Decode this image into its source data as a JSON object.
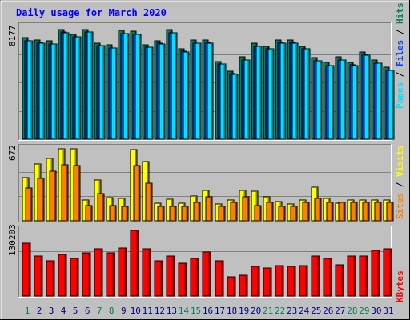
{
  "title": "Daily usage for March 2020",
  "colors": {
    "background": "#c0c0c0",
    "title": "#0000ff",
    "hits": "#00805c",
    "files": "#0040ff",
    "pages": "#00e0ff",
    "visits": "#ffff00",
    "sites": "#ff8000",
    "kbytes": "#ff0000",
    "weekend_day_label": "#00805c",
    "weekday_day_label": "#000080"
  },
  "chart_data": [
    {
      "type": "bar",
      "panel": "hits-files-pages",
      "ymax_label": "8177",
      "ylim": [
        0,
        8177
      ],
      "legend": [
        "Hits",
        "Files",
        "Pages"
      ],
      "categories": [
        "1",
        "2",
        "3",
        "4",
        "5",
        "6",
        "7",
        "8",
        "9",
        "10",
        "11",
        "12",
        "13",
        "14",
        "15",
        "16",
        "17",
        "18",
        "19",
        "20",
        "21",
        "22",
        "23",
        "24",
        "25",
        "26",
        "27",
        "28",
        "29",
        "30",
        "31"
      ],
      "weekend_days": [
        "1",
        "7",
        "8",
        "14",
        "15",
        "21",
        "22",
        "28",
        "29"
      ],
      "series": [
        {
          "name": "Hits",
          "values": [
            7400,
            7250,
            7170,
            8000,
            7680,
            8030,
            7030,
            6880,
            7930,
            7880,
            6920,
            7180,
            7980,
            6600,
            7220,
            7250,
            5690,
            4970,
            6010,
            6980,
            6800,
            7250,
            7250,
            6800,
            5940,
            5600,
            6010,
            5620,
            6380,
            5760,
            5230
          ]
        },
        {
          "name": "Files",
          "values": [
            7200,
            7050,
            6970,
            7800,
            7480,
            7830,
            6830,
            6680,
            7730,
            7680,
            6720,
            6980,
            7780,
            6400,
            7020,
            7050,
            5490,
            4770,
            5810,
            6780,
            6600,
            7050,
            7050,
            6600,
            5740,
            5400,
            5810,
            5420,
            6180,
            5560,
            5030
          ]
        },
        {
          "name": "Pages",
          "values": [
            7180,
            7030,
            6950,
            7780,
            7460,
            7810,
            6810,
            6660,
            7710,
            7660,
            6700,
            6960,
            7760,
            6380,
            7000,
            7030,
            5470,
            4750,
            5790,
            6760,
            6580,
            7030,
            7030,
            6580,
            5720,
            5380,
            5790,
            5400,
            6160,
            5540,
            5010
          ]
        }
      ]
    },
    {
      "type": "bar",
      "panel": "visits-sites",
      "ymax_label": "672",
      "ylim": [
        0,
        672
      ],
      "legend": [
        "Visits",
        "Sites"
      ],
      "categories": [
        "1",
        "2",
        "3",
        "4",
        "5",
        "6",
        "7",
        "8",
        "9",
        "10",
        "11",
        "12",
        "13",
        "14",
        "15",
        "16",
        "17",
        "18",
        "19",
        "20",
        "21",
        "22",
        "23",
        "24",
        "25",
        "26",
        "27",
        "28",
        "29",
        "30",
        "31"
      ],
      "series": [
        {
          "name": "Visits",
          "values": [
            402,
            533,
            579,
            672,
            672,
            191,
            384,
            217,
            209,
            661,
            551,
            164,
            200,
            161,
            231,
            286,
            157,
            195,
            282,
            276,
            224,
            180,
            157,
            196,
            312,
            208,
            162,
            191,
            191,
            195,
            195
          ]
        },
        {
          "name": "Sites",
          "values": [
            303,
            397,
            461,
            521,
            516,
            143,
            253,
            143,
            131,
            518,
            348,
            131,
            131,
            131,
            168,
            221,
            131,
            168,
            223,
            143,
            168,
            131,
            131,
            168,
            210,
            168,
            168,
            168,
            168,
            168,
            168
          ]
        }
      ]
    },
    {
      "type": "bar",
      "panel": "kbytes",
      "ymax_label": "130203",
      "ylim": [
        0,
        130203
      ],
      "legend": [
        "KBytes"
      ],
      "categories": [
        "1",
        "2",
        "3",
        "4",
        "5",
        "6",
        "7",
        "8",
        "9",
        "10",
        "11",
        "12",
        "13",
        "14",
        "15",
        "16",
        "17",
        "18",
        "19",
        "20",
        "21",
        "22",
        "23",
        "24",
        "25",
        "26",
        "27",
        "28",
        "29",
        "30",
        "31"
      ],
      "series": [
        {
          "name": "KBytes",
          "values": [
            105000,
            80000,
            70000,
            83000,
            74000,
            86000,
            94000,
            85000,
            96000,
            130000,
            94000,
            70000,
            80000,
            65000,
            75000,
            88000,
            70000,
            38000,
            42000,
            58000,
            56000,
            61000,
            59000,
            61000,
            80000,
            74000,
            62000,
            80000,
            79000,
            90000,
            93000
          ]
        }
      ]
    }
  ]
}
